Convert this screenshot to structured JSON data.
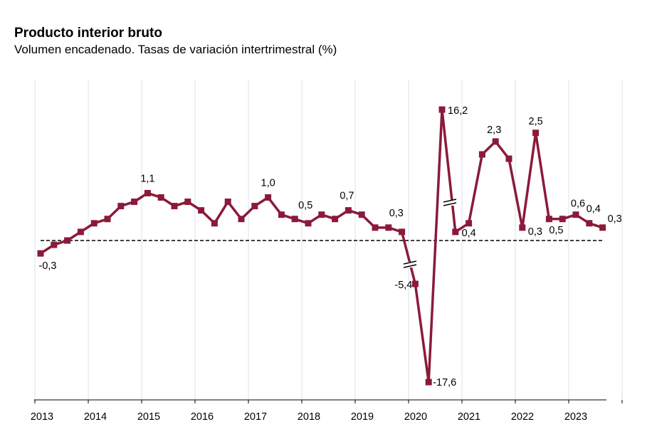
{
  "header": {
    "title": "Producto interior bruto",
    "subtitle": "Volumen encadenado. Tasas de variación intertrimestral (%)"
  },
  "chart_data": {
    "type": "line",
    "title": "Producto interior bruto",
    "subtitle": "Volumen encadenado. Tasas de variación intertrimestral (%)",
    "x_tick_labels": [
      "2013",
      "2014",
      "2015",
      "2016",
      "2017",
      "2018",
      "2019",
      "2020",
      "2021",
      "2022",
      "2023"
    ],
    "y_axis_note": "Broken scale: 2020 Q2 (-17,6) and 2020 Q3 (16,2) drawn on compressed scale; reference line at 0",
    "grid": "vertical",
    "series": [
      {
        "color": "#8b1a3a",
        "points": [
          {
            "q": "2013-Q1",
            "value": -0.3,
            "label": "-0,3"
          },
          {
            "q": "2013-Q2",
            "value": -0.1
          },
          {
            "q": "2013-Q3",
            "value": 0.0
          },
          {
            "q": "2013-Q4",
            "value": 0.2
          },
          {
            "q": "2014-Q1",
            "value": 0.4
          },
          {
            "q": "2014-Q2",
            "value": 0.5
          },
          {
            "q": "2014-Q3",
            "value": 0.8
          },
          {
            "q": "2014-Q4",
            "value": 0.9
          },
          {
            "q": "2015-Q1",
            "value": 1.1,
            "label": "1,1"
          },
          {
            "q": "2015-Q2",
            "value": 1.0
          },
          {
            "q": "2015-Q3",
            "value": 0.8
          },
          {
            "q": "2015-Q4",
            "value": 0.9
          },
          {
            "q": "2016-Q1",
            "value": 0.7
          },
          {
            "q": "2016-Q2",
            "value": 0.4
          },
          {
            "q": "2016-Q3",
            "value": 0.9
          },
          {
            "q": "2016-Q4",
            "value": 0.5
          },
          {
            "q": "2017-Q1",
            "value": 0.8
          },
          {
            "q": "2017-Q2",
            "value": 1.0,
            "label": "1,0"
          },
          {
            "q": "2017-Q3",
            "value": 0.6
          },
          {
            "q": "2017-Q4",
            "value": 0.5,
            "label": "0,5"
          },
          {
            "q": "2018-Q1",
            "value": 0.4
          },
          {
            "q": "2018-Q2",
            "value": 0.6
          },
          {
            "q": "2018-Q3",
            "value": 0.5
          },
          {
            "q": "2018-Q4",
            "value": 0.7,
            "label": "0,7"
          },
          {
            "q": "2019-Q1",
            "value": 0.6
          },
          {
            "q": "2019-Q2",
            "value": 0.3
          },
          {
            "q": "2019-Q3",
            "value": 0.3,
            "label": "0,3"
          },
          {
            "q": "2019-Q4",
            "value": 0.2
          },
          {
            "q": "2020-Q1",
            "value": -5.4,
            "label": "-5,4"
          },
          {
            "q": "2020-Q2",
            "value": -17.6,
            "label": "-17,6"
          },
          {
            "q": "2020-Q3",
            "value": 16.2,
            "label": "16,2"
          },
          {
            "q": "2020-Q4",
            "value": 0.2
          },
          {
            "q": "2021-Q1",
            "value": 0.4,
            "label": "0,4"
          },
          {
            "q": "2021-Q2",
            "value": 2.0
          },
          {
            "q": "2021-Q3",
            "value": 2.3,
            "label": "2,3"
          },
          {
            "q": "2021-Q4",
            "value": 1.9
          },
          {
            "q": "2022-Q1",
            "value": 0.3,
            "label": "0,3"
          },
          {
            "q": "2022-Q2",
            "value": 2.5,
            "label": "2,5"
          },
          {
            "q": "2022-Q3",
            "value": 0.5,
            "label": "0,5"
          },
          {
            "q": "2022-Q4",
            "value": 0.5
          },
          {
            "q": "2023-Q1",
            "value": 0.6,
            "label": "0,6"
          },
          {
            "q": "2023-Q2",
            "value": 0.4,
            "label": "0,4"
          },
          {
            "q": "2023-Q3",
            "value": 0.3,
            "label": "0,3"
          }
        ]
      }
    ]
  }
}
